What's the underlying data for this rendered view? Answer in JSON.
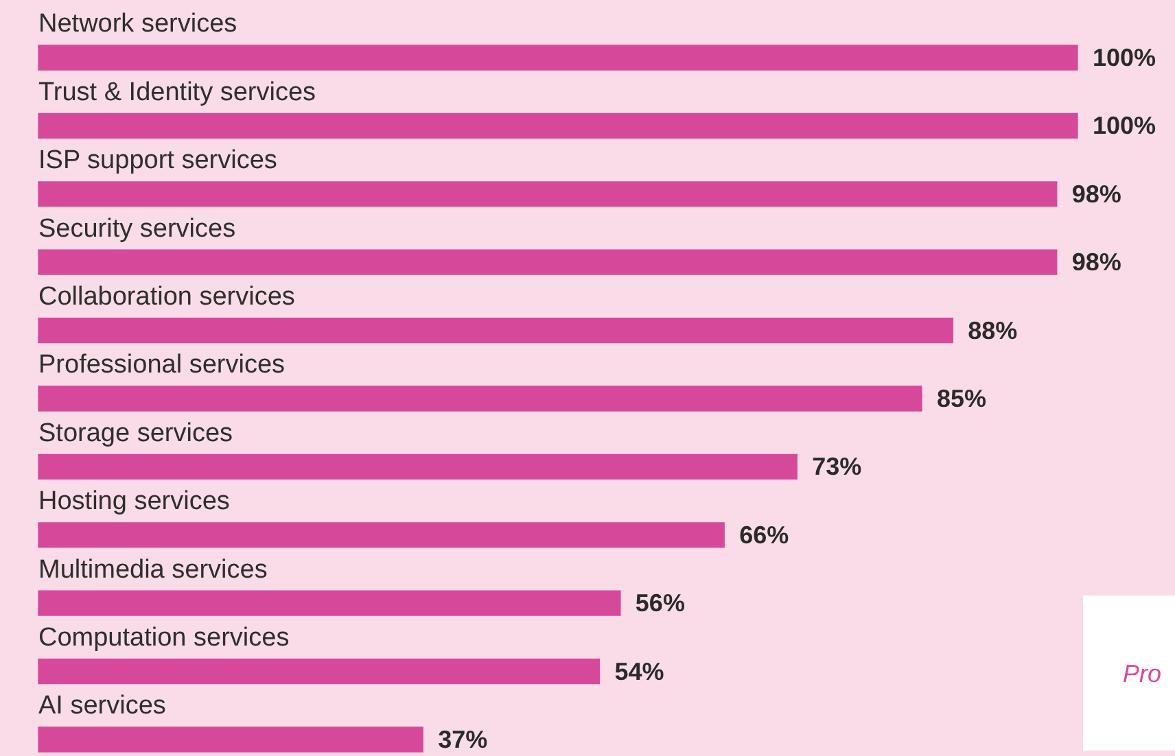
{
  "chart_data": {
    "type": "bar",
    "orientation": "horizontal",
    "categories": [
      "Network services",
      "Trust & Identity services",
      "ISP support services",
      "Security services",
      "Collaboration services",
      "Professional services",
      "Storage services",
      "Hosting services",
      "Multimedia services",
      "Computation services",
      "AI services"
    ],
    "values": [
      100,
      100,
      98,
      98,
      88,
      85,
      73,
      66,
      56,
      54,
      37
    ],
    "color": "#d6499a",
    "value_labels": [
      "100%",
      "100%",
      "98%",
      "98%",
      "88%",
      "85%",
      "73%",
      "66%",
      "56%",
      "54%",
      "37%"
    ],
    "tick_labels": "y",
    "annotations": [
      "Pro"
    ]
  }
}
